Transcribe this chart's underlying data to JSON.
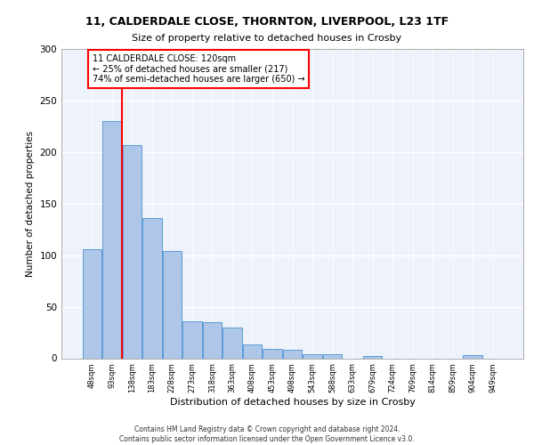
{
  "title_line1": "11, CALDERDALE CLOSE, THORNTON, LIVERPOOL, L23 1TF",
  "title_line2": "Size of property relative to detached houses in Crosby",
  "xlabel": "Distribution of detached houses by size in Crosby",
  "ylabel": "Number of detached properties",
  "categories": [
    "48sqm",
    "93sqm",
    "138sqm",
    "183sqm",
    "228sqm",
    "273sqm",
    "318sqm",
    "363sqm",
    "408sqm",
    "453sqm",
    "498sqm",
    "543sqm",
    "588sqm",
    "633sqm",
    "679sqm",
    "724sqm",
    "769sqm",
    "814sqm",
    "859sqm",
    "904sqm",
    "949sqm"
  ],
  "values": [
    106,
    230,
    207,
    136,
    104,
    36,
    35,
    30,
    13,
    9,
    8,
    4,
    4,
    0,
    2,
    0,
    0,
    0,
    0,
    3,
    0
  ],
  "bar_color": "#aec6e8",
  "bar_edge_color": "#5b9bd5",
  "red_line_x": 1.5,
  "annotation_text": "11 CALDERDALE CLOSE: 120sqm\n← 25% of detached houses are smaller (217)\n74% of semi-detached houses are larger (650) →",
  "annotation_box_color": "white",
  "annotation_box_edge_color": "red",
  "red_line_color": "red",
  "ylim": [
    0,
    300
  ],
  "yticks": [
    0,
    50,
    100,
    150,
    200,
    250,
    300
  ],
  "background_color": "#eef3fb",
  "grid_color": "white",
  "footer_line1": "Contains HM Land Registry data © Crown copyright and database right 2024.",
  "footer_line2": "Contains public sector information licensed under the Open Government Licence v3.0."
}
